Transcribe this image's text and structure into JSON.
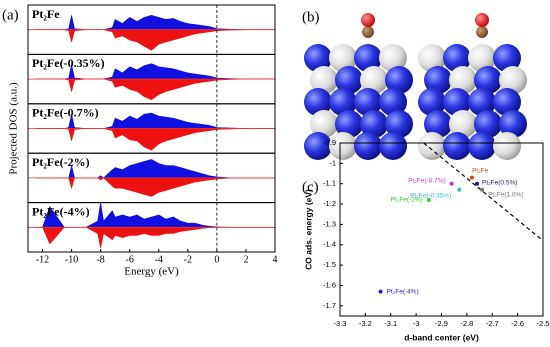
{
  "chart_data": [
    {
      "type": "dos",
      "panel_label": "(a)",
      "xlabel": "Energy (eV)",
      "ylabel": "Projected DOS (a.u.)",
      "xlim": [
        -13,
        4
      ],
      "xticks": [
        -12,
        -10,
        -8,
        -6,
        -4,
        -2,
        0,
        2,
        4
      ],
      "ylim": [
        -1.2,
        1.2
      ],
      "fermi_level": 0,
      "up_color": "#1010e0",
      "down_color": "#ee1111",
      "x": [
        -12.5,
        -12,
        -11.5,
        -10.5,
        -10.2,
        -10,
        -9.8,
        -9,
        -8.2,
        -8,
        -7.8,
        -7.2,
        -7,
        -6.5,
        -6,
        -5.5,
        -5,
        -4.5,
        -4,
        -3.5,
        -3,
        -2.5,
        -2,
        -1.5,
        -1,
        -0.5,
        0,
        1,
        2,
        3,
        4
      ],
      "panels": [
        {
          "label": "Pt₂Fe",
          "up": [
            0,
            0,
            0,
            0,
            0.05,
            0.7,
            0.05,
            0,
            0,
            0,
            0,
            0.1,
            0.5,
            0.3,
            0.6,
            0.4,
            0.6,
            0.7,
            0.6,
            0.5,
            0.55,
            0.4,
            0.3,
            0.25,
            0.2,
            0.15,
            0.05,
            0.02,
            0,
            0,
            0
          ],
          "down": [
            0,
            0,
            0,
            0,
            -0.05,
            -0.6,
            -0.05,
            0,
            0,
            0,
            0,
            -0.1,
            -0.4,
            -0.3,
            -0.5,
            -0.6,
            -0.8,
            -1.0,
            -0.7,
            -0.6,
            -0.5,
            -0.4,
            -0.3,
            -0.2,
            -0.15,
            -0.1,
            -0.05,
            -0.02,
            0,
            0,
            0
          ]
        },
        {
          "label": "Pt₂Fe(-0.35%)",
          "up": [
            0,
            0,
            0,
            0,
            0.05,
            0.7,
            0.05,
            0,
            0,
            0,
            0,
            0.1,
            0.5,
            0.3,
            0.6,
            0.45,
            0.65,
            0.75,
            0.6,
            0.55,
            0.5,
            0.4,
            0.3,
            0.25,
            0.2,
            0.15,
            0.05,
            0.02,
            0,
            0,
            0
          ],
          "down": [
            0,
            0,
            0,
            0,
            -0.05,
            -0.6,
            -0.05,
            0,
            0,
            0,
            0,
            -0.1,
            -0.4,
            -0.3,
            -0.5,
            -0.6,
            -0.85,
            -1.0,
            -0.75,
            -0.6,
            -0.5,
            -0.4,
            -0.3,
            -0.2,
            -0.15,
            -0.1,
            -0.05,
            -0.02,
            0,
            0,
            0
          ]
        },
        {
          "label": "Pt₂Fe(-0.7%)",
          "up": [
            0,
            0,
            0,
            0,
            0.05,
            0.7,
            0.05,
            0,
            0,
            0,
            0,
            0.1,
            0.5,
            0.35,
            0.6,
            0.45,
            0.7,
            0.75,
            0.6,
            0.55,
            0.5,
            0.4,
            0.3,
            0.25,
            0.2,
            0.15,
            0.05,
            0.02,
            0,
            0,
            0
          ],
          "down": [
            0,
            0,
            0,
            0,
            -0.05,
            -0.6,
            -0.05,
            0,
            0,
            0,
            0,
            -0.1,
            -0.45,
            -0.3,
            -0.55,
            -0.6,
            -0.9,
            -1.05,
            -0.75,
            -0.6,
            -0.5,
            -0.4,
            -0.3,
            -0.2,
            -0.15,
            -0.1,
            -0.05,
            -0.02,
            0,
            0,
            0
          ]
        },
        {
          "label": "Pt₂Fe(-2%)",
          "up": [
            0,
            0,
            0,
            0,
            0,
            0.6,
            0,
            0,
            0,
            0.1,
            0,
            0.4,
            0.5,
            0.4,
            0.6,
            0.7,
            0.8,
            0.9,
            0.7,
            0.6,
            0.6,
            0.5,
            0.4,
            0.3,
            0.2,
            0.1,
            0.05,
            0,
            0,
            0,
            0
          ],
          "down": [
            0,
            0,
            0,
            0,
            0,
            -0.5,
            0,
            0,
            0,
            -0.1,
            0,
            -0.4,
            -0.5,
            -0.5,
            -0.6,
            -0.7,
            -0.8,
            -0.9,
            -0.7,
            -0.6,
            -0.5,
            -0.4,
            -0.3,
            -0.2,
            -0.15,
            -0.1,
            -0.05,
            0,
            0,
            0,
            0
          ]
        },
        {
          "label": "Pt₂Fe(-4%)",
          "up": [
            0,
            0,
            1.0,
            0,
            0,
            0,
            0,
            0,
            0.3,
            1.2,
            0.3,
            0.8,
            0.5,
            0.6,
            0.5,
            0.6,
            0.4,
            0.5,
            0.6,
            0.4,
            0.5,
            0.3,
            0.2,
            0.2,
            0.1,
            0.05,
            0.02,
            0,
            0,
            0,
            0
          ],
          "down": [
            0,
            0,
            -0.8,
            0,
            0,
            0,
            0,
            0,
            -0.3,
            -1.0,
            -0.3,
            -0.6,
            -0.4,
            -0.5,
            -0.4,
            -0.4,
            -0.3,
            -0.4,
            -0.4,
            -0.3,
            -0.3,
            -0.2,
            -0.15,
            -0.1,
            -0.05,
            -0.02,
            0,
            0,
            0,
            0,
            0
          ]
        }
      ]
    },
    {
      "type": "scatter",
      "panel_label": "(c)",
      "xlabel": "d-band center (eV)",
      "ylabel": "CO ads. energy (eV)",
      "xlim": [
        -3.3,
        -2.5
      ],
      "xticks": [
        -3.3,
        -3.2,
        -3.1,
        -3,
        -2.9,
        -2.8,
        -2.7,
        -2.6,
        -2.5
      ],
      "ylim": [
        -1.75,
        -0.9
      ],
      "yticks": [
        -0.9,
        -1,
        -1.1,
        -1.2,
        -1.3,
        -1.4,
        -1.5,
        -1.6,
        -1.7
      ],
      "series": [
        {
          "name": "Pt₂Fe(-4%)",
          "color": "#2020dd",
          "x": [
            -3.14
          ],
          "values": [
            -1.63
          ]
        },
        {
          "name": "Pt₂Fe(-2%)",
          "color": "#33cc33",
          "x": [
            -2.95
          ],
          "values": [
            -1.18
          ]
        },
        {
          "name": "Pt₂Fe(-0.7%)",
          "color": "#cc33cc",
          "x": [
            -2.86
          ],
          "values": [
            -1.1
          ]
        },
        {
          "name": "Pt₂Fe(-0.35%)",
          "color": "#33bbdd",
          "x": [
            -2.83
          ],
          "values": [
            -1.13
          ]
        },
        {
          "name": "Pt₂Fe",
          "color": "#dd4411",
          "x": [
            -2.78
          ],
          "values": [
            -1.07
          ]
        },
        {
          "name": "Pt₂Fe(0.5%)",
          "color": "#1a1a80",
          "x": [
            -2.76
          ],
          "values": [
            -1.1
          ]
        },
        {
          "name": "Pt₂Fe(1.0%)",
          "color": "#777777",
          "x": [
            -2.74
          ],
          "values": [
            -1.13
          ]
        }
      ],
      "fit_line": {
        "x": [
          -2.97,
          -2.5
        ],
        "values": [
          -0.9,
          -1.38
        ]
      }
    }
  ],
  "panel_b": {
    "label": "(b)"
  }
}
